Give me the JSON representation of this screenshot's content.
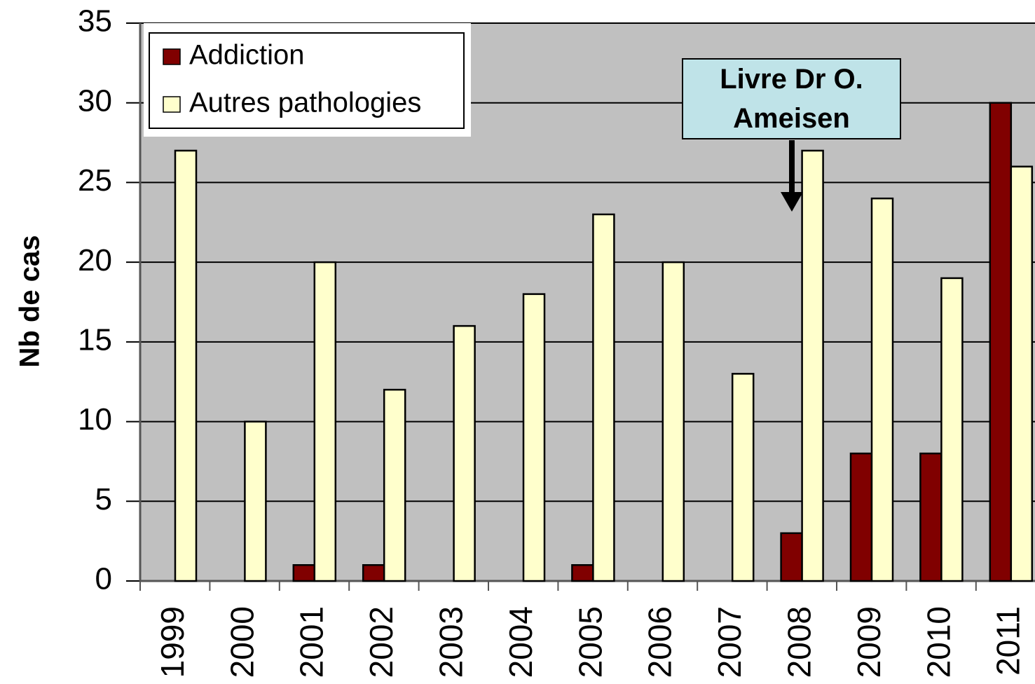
{
  "chart_data": {
    "type": "bar",
    "categories": [
      "1999",
      "2000",
      "2001",
      "2002",
      "2003",
      "2004",
      "2005",
      "2006",
      "2007",
      "2008",
      "2009",
      "2010",
      "2011"
    ],
    "series": [
      {
        "name": "Addiction",
        "color": "#800000",
        "values": [
          0,
          0,
          1,
          1,
          0,
          0,
          1,
          0,
          0,
          3,
          8,
          8,
          30
        ]
      },
      {
        "name": "Autres pathologies",
        "color": "#ffffcc",
        "values": [
          27,
          10,
          20,
          12,
          16,
          18,
          23,
          20,
          13,
          27,
          24,
          19,
          26
        ]
      }
    ],
    "ylabel": "Nb de cas",
    "ylim": [
      0,
      35
    ],
    "yticks": [
      0,
      5,
      10,
      15,
      20,
      25,
      30,
      35
    ],
    "grid": true,
    "legend": "upper left",
    "annotation": "Livre Dr O. Ameisen"
  }
}
